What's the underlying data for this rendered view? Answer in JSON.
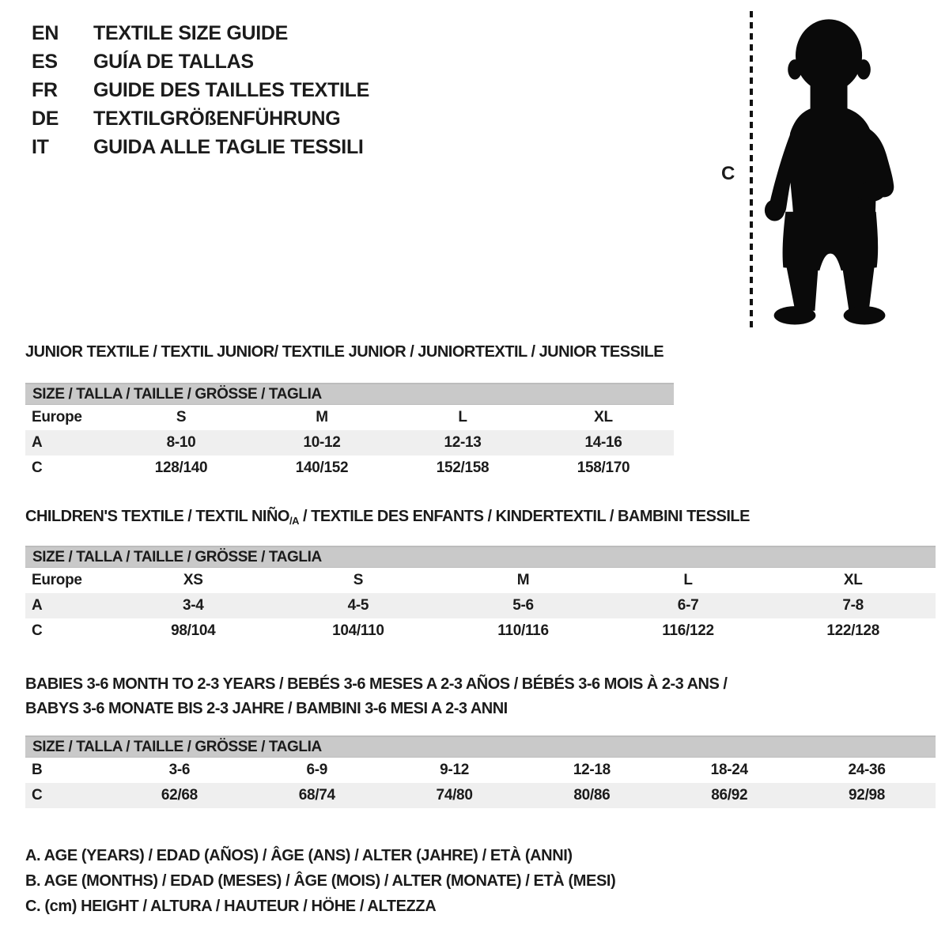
{
  "colors": {
    "header_bar": "#c9c9c9",
    "row_alt": "#efefef",
    "text": "#1b1b1b",
    "silhouette": "#0a0a0a"
  },
  "languages": [
    {
      "code": "EN",
      "title": "TEXTILE SIZE GUIDE"
    },
    {
      "code": "ES",
      "title": "GUÍA DE TALLAS"
    },
    {
      "code": "FR",
      "title": "GUIDE DES TAILLES TEXTILE"
    },
    {
      "code": "DE",
      "title": "TEXTILGRÖßENFÜHRUNG"
    },
    {
      "code": "IT",
      "title": "GUIDA ALLE TAGLIE TESSILI"
    }
  ],
  "figure": {
    "measure_label": "C"
  },
  "sections": [
    {
      "id": "junior",
      "title": "JUNIOR TEXTILE / TEXTIL JUNIOR/ TEXTILE JUNIOR / JUNIORTEXTIL / JUNIOR TESSILE",
      "size_header": "SIZE / TALLA / TAILLE / GRÖSSE / TAGLIA",
      "rows": [
        {
          "label": "Europe",
          "cells": [
            "S",
            "M",
            "L",
            "XL"
          ],
          "shaded": false
        },
        {
          "label": "A",
          "cells": [
            "8-10",
            "10-12",
            "12-13",
            "14-16"
          ],
          "shaded": true
        },
        {
          "label": "C",
          "cells": [
            "128/140",
            "140/152",
            "152/158",
            "158/170"
          ],
          "shaded": false
        }
      ]
    },
    {
      "id": "children",
      "title_parts": {
        "prefix": "CHILDREN'S TEXTILE / TEXTIL NIÑO",
        "sub": "/A",
        "suffix": " / TEXTILE DES ENFANTS / KINDERTEXTIL / BAMBINI TESSILE"
      },
      "size_header": "SIZE / TALLA / TAILLE / GRÖSSE / TAGLIA",
      "rows": [
        {
          "label": "Europe",
          "cells": [
            "XS",
            "S",
            "M",
            "L",
            "XL"
          ],
          "shaded": false
        },
        {
          "label": "A",
          "cells": [
            "3-4",
            "4-5",
            "5-6",
            "6-7",
            "7-8"
          ],
          "shaded": true
        },
        {
          "label": "C",
          "cells": [
            "98/104",
            "104/110",
            "110/116",
            "116/122",
            "122/128"
          ],
          "shaded": false
        }
      ]
    },
    {
      "id": "babies",
      "title_lines": [
        "BABIES 3-6 MONTH TO 2-3 YEARS / BEBÉS 3-6 MESES A 2-3 AÑOS / BÉBÉS 3-6 MOIS À 2-3 ANS /",
        "BABYS 3-6 MONATE BIS 2-3 JAHRE / BAMBINI 3-6 MESI A 2-3 ANNI"
      ],
      "size_header": "SIZE / TALLA / TAILLE / GRÖSSE / TAGLIA",
      "rows": [
        {
          "label": "B",
          "cells": [
            "3-6",
            "6-9",
            "9-12",
            "12-18",
            "18-24",
            "24-36"
          ],
          "shaded": false
        },
        {
          "label": "C",
          "cells": [
            "62/68",
            "68/74",
            "74/80",
            "80/86",
            "86/92",
            "92/98"
          ],
          "shaded": true
        }
      ]
    }
  ],
  "legend": [
    "A. AGE (YEARS) / EDAD (AÑOS) / ÂGE (ANS) / ALTER (JAHRE) / ETÀ (ANNI)",
    "B. AGE (MONTHS) / EDAD (MESES) / ÂGE (MOIS) / ALTER (MONATE) / ETÀ (MESI)",
    "C. (cm) HEIGHT / ALTURA / HAUTEUR / HÖHE / ALTEZZA"
  ]
}
